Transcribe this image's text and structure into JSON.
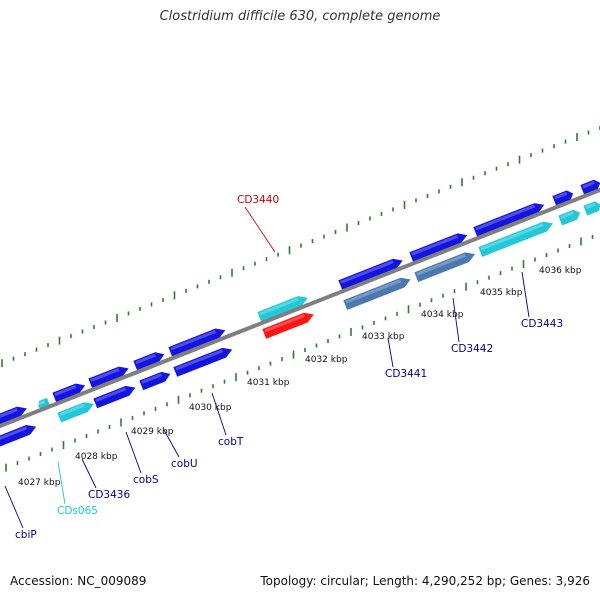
{
  "title": "Clostridium difficile 630, complete genome",
  "accession_label": "Accession: NC_009089",
  "summary_label": "Topology: circular; Length: 4,290,252 bp; Genes: 3,926",
  "colors": {
    "backbone": "#7f7f7f",
    "ticks": "#2e7d2e",
    "cds_blue": "#1414e0",
    "cds_cyan": "#20c8d8",
    "cds_steel": "#4a78b0",
    "highlight_red": "#ff1414",
    "label_blue": "#00008b",
    "label_cyan": "#20c8d8",
    "label_red": "#cc0000",
    "kbp_text": "#111111"
  },
  "kbp_ticks": [
    "4027 kbp",
    "4028 kbp",
    "4029 kbp",
    "4030 kbp",
    "4031 kbp",
    "4032 kbp",
    "4033 kbp",
    "4034 kbp",
    "4035 kbp",
    "4036 kbp"
  ],
  "gene_labels": [
    {
      "text": "cbiP",
      "color": "blue"
    },
    {
      "text": "CDs065",
      "color": "cyan"
    },
    {
      "text": "CD3436",
      "color": "blue"
    },
    {
      "text": "cobS",
      "color": "blue"
    },
    {
      "text": "cobU",
      "color": "blue"
    },
    {
      "text": "cobT",
      "color": "blue"
    },
    {
      "text": "CD3440",
      "color": "red"
    },
    {
      "text": "CD3441",
      "color": "blue"
    },
    {
      "text": "CD3442",
      "color": "blue"
    },
    {
      "text": "CD3443",
      "color": "blue"
    }
  ]
}
